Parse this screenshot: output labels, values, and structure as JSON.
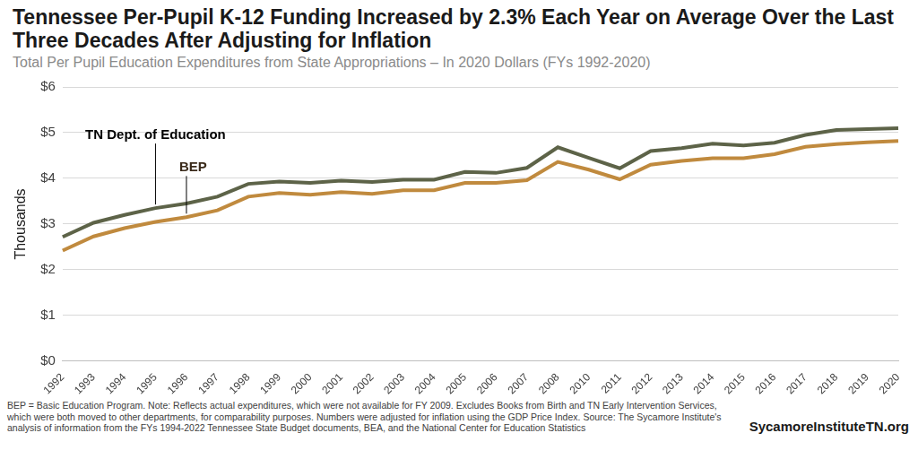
{
  "chart_data": {
    "type": "line",
    "title": "Tennessee Per-Pupil K-12 Funding Increased by 2.3% Each Year on Average Over the Last Three Decades After Adjusting for Inflation",
    "subtitle": "Total Per Pupil Education Expenditures from State Appropriations – In 2020 Dollars (FYs 1992-2020)",
    "y_label": "Thousands",
    "note": "BEP = Basic Education Program. Note: Reflects actual expenditures, which were not available for FY 2009. Excludes Books from Birth and TN Early Intervention Services, which were both moved to other departments, for comparability purposes. Numbers were adjusted for inflation using the GDP Price Index. Source: The Sycamore Institute's analysis of information from the FYs 1994-2022 Tennessee State Budget documents, BEA, and the National Center for Education Statistics",
    "credit": "SycamoreInstituteTN.org",
    "categories": [
      "1992",
      "1993",
      "1994",
      "1995",
      "1996",
      "1997",
      "1998",
      "1999",
      "2000",
      "2001",
      "2002",
      "2003",
      "2004",
      "2005",
      "2006",
      "2007",
      "2008",
      "2010",
      "2011",
      "2012",
      "2013",
      "2014",
      "2015",
      "2016",
      "2017",
      "2018",
      "2019",
      "2020"
    ],
    "series": [
      {
        "name": "TN Dept. of Education",
        "color": "#5d6348",
        "values": [
          2.72,
          3.03,
          3.2,
          3.35,
          3.45,
          3.6,
          3.88,
          3.93,
          3.9,
          3.95,
          3.92,
          3.97,
          3.97,
          4.14,
          4.12,
          4.23,
          4.68,
          4.45,
          4.22,
          4.6,
          4.66,
          4.76,
          4.72,
          4.78,
          4.95,
          5.06,
          5.08,
          5.1
        ]
      },
      {
        "name": "BEP",
        "color": "#c08a3e",
        "values": [
          2.42,
          2.73,
          2.91,
          3.05,
          3.15,
          3.3,
          3.6,
          3.68,
          3.64,
          3.7,
          3.66,
          3.74,
          3.74,
          3.9,
          3.9,
          3.96,
          4.36,
          4.19,
          3.98,
          4.3,
          4.38,
          4.44,
          4.44,
          4.53,
          4.69,
          4.75,
          4.79,
          4.82
        ]
      }
    ],
    "ylim": [
      0,
      6
    ],
    "yticks": [
      {
        "value": 0,
        "label": "$0"
      },
      {
        "value": 1,
        "label": "$1"
      },
      {
        "value": 2,
        "label": "$2"
      },
      {
        "value": 3,
        "label": "$3"
      },
      {
        "value": 4,
        "label": "$4"
      },
      {
        "value": 5,
        "label": "$5"
      },
      {
        "value": 6,
        "label": "$6"
      }
    ],
    "grid": true
  }
}
